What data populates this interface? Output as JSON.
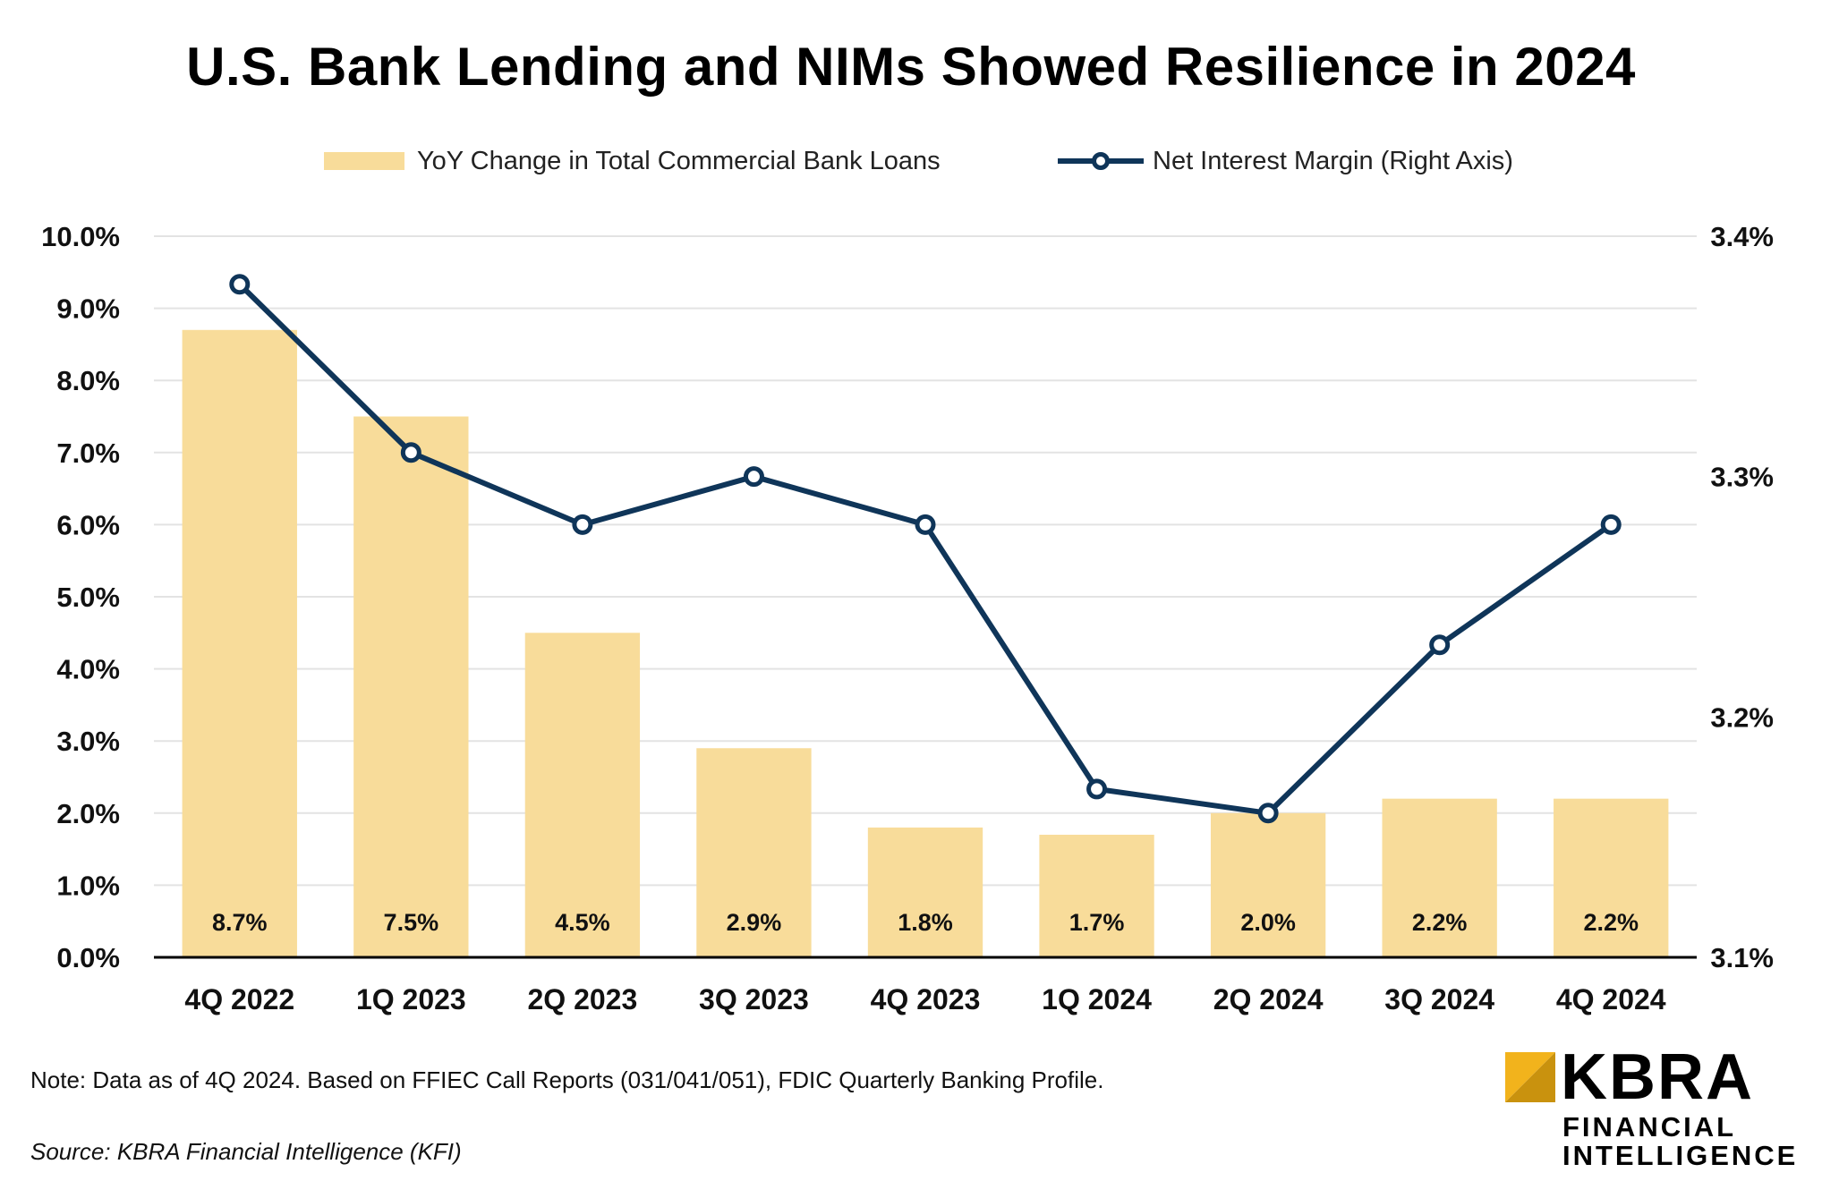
{
  "chart_data": {
    "type": "bar",
    "title": "U.S. Bank Lending and NIMs Showed Resilience in 2024",
    "categories": [
      "4Q 2022",
      "1Q 2023",
      "2Q 2023",
      "3Q 2023",
      "4Q 2023",
      "1Q 2024",
      "2Q 2024",
      "3Q 2024",
      "4Q 2024"
    ],
    "series": [
      {
        "name": "YoY Change in Total Commercial Bank Loans",
        "type": "bar",
        "axis": "left",
        "color": "#F8DC9A",
        "values": [
          8.7,
          7.5,
          4.5,
          2.9,
          1.8,
          1.7,
          2.0,
          2.2,
          2.2
        ],
        "labels": [
          "8.7%",
          "7.5%",
          "4.5%",
          "2.9%",
          "1.8%",
          "1.7%",
          "2.0%",
          "2.2%",
          "2.2%"
        ]
      },
      {
        "name": "Net Interest Margin (Right Axis)",
        "type": "line",
        "axis": "right",
        "color": "#0F3559",
        "values": [
          3.38,
          3.31,
          3.28,
          3.3,
          3.28,
          3.17,
          3.16,
          3.23,
          3.28
        ]
      }
    ],
    "y_left": {
      "ylim": [
        0,
        10
      ],
      "ticks": [
        0,
        1,
        2,
        3,
        4,
        5,
        6,
        7,
        8,
        9,
        10
      ],
      "tick_labels": [
        "0.0%",
        "1.0%",
        "2.0%",
        "3.0%",
        "4.0%",
        "5.0%",
        "6.0%",
        "7.0%",
        "8.0%",
        "9.0%",
        "10.0%"
      ]
    },
    "y_right": {
      "ylim": [
        3.1,
        3.4
      ],
      "ticks": [
        3.1,
        3.2,
        3.3,
        3.4
      ],
      "tick_labels": [
        "3.1%",
        "3.2%",
        "3.3%",
        "3.4%"
      ]
    },
    "grid": true,
    "legend_position": "top-center"
  },
  "footer": {
    "note": "Note: Data as of 4Q 2024. Based on FFIEC Call Reports (031/041/051), FDIC Quarterly Banking Profile.",
    "source": "Source: KBRA Financial Intelligence (KFI)"
  },
  "logo": {
    "wordmark": "KBRA",
    "line1": "FINANCIAL",
    "line2": "INTELLIGENCE",
    "accent_color": "#F2B31C"
  }
}
